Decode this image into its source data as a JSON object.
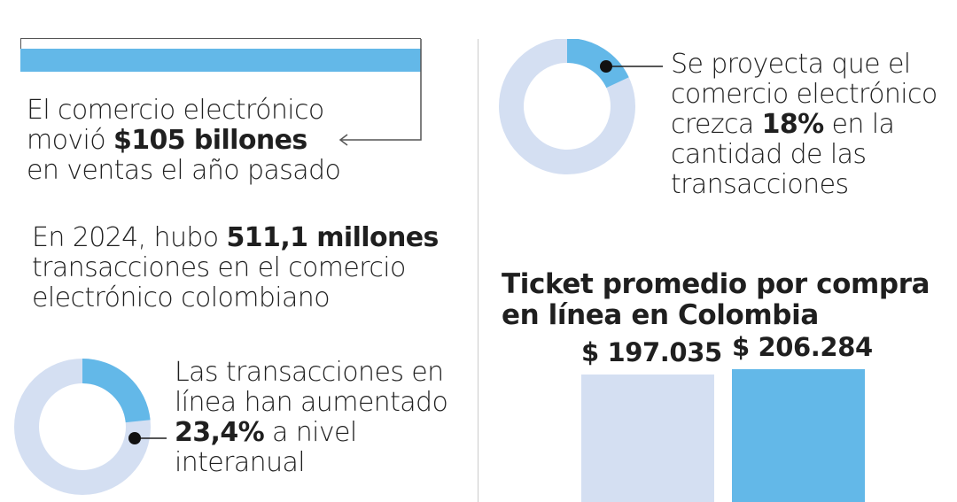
{
  "colors": {
    "accent": "#63b8e8",
    "track": "#d4dff2",
    "text": "#1f1f1f",
    "divider": "#cccccc"
  },
  "ecommerce_block": {
    "line1": "El comercio electrónico",
    "line2_prefix": "movió ",
    "line2_bold": "$105 billones",
    "line3": "en ventas el año pasado"
  },
  "transactions_block": {
    "line1_prefix": "En 2024, hubo ",
    "line1_bold": "511,1 millones",
    "line2": "transacciones en el comercio",
    "line3": "electrónico colombiano"
  },
  "growth_block": {
    "line1": "Las transacciones en",
    "line2": "línea han aumentado",
    "line3_bold": "23,4%",
    "line3_suffix": " a nivel",
    "line4": "interanual"
  },
  "projection_block": {
    "line1": "Se proyecta que el",
    "line2": "comercio electrónico",
    "line3_prefix": "crezca ",
    "line3_bold": "18%",
    "line3_suffix": " en la",
    "line4": "cantidad de las",
    "line5": "transacciones"
  },
  "chart_data": [
    {
      "type": "bar",
      "title": "Ticket promedio por compra en línea en Colombia",
      "title_line1": "Ticket promedio por compra",
      "title_line2": "en línea en Colombia",
      "categories": [
        "",
        ""
      ],
      "values": [
        197035,
        206284
      ],
      "value_labels": [
        "$ 197.035",
        "$ 206.284"
      ],
      "colors": [
        "#d4dff2",
        "#63b8e8"
      ],
      "ylim": [
        0,
        236000
      ]
    },
    {
      "type": "pie",
      "style": "donut",
      "values": [
        23.4,
        76.6
      ],
      "colors": [
        "#63b8e8",
        "#d4dff2"
      ]
    },
    {
      "type": "pie",
      "style": "donut",
      "values": [
        18,
        82
      ],
      "colors": [
        "#63b8e8",
        "#d4dff2"
      ]
    }
  ]
}
